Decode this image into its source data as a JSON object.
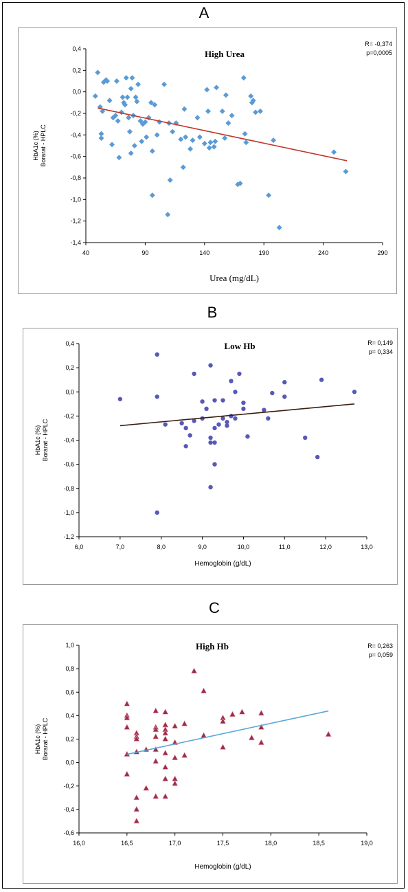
{
  "chart_data": [
    {
      "panel": "A",
      "type": "scatter",
      "title": "High Urea",
      "xlabel": "Urea (mg/dL)",
      "ylabel": [
        "HbA1c (%)",
        "Borarat - HPLC"
      ],
      "annotation": [
        "R= -0,374",
        "p=0,0005"
      ],
      "xlim": [
        40,
        290
      ],
      "ylim": [
        -1.4,
        0.4
      ],
      "xticks": [
        "40",
        "90",
        "140",
        "190",
        "240",
        "290"
      ],
      "yticks": [
        "0,4",
        "0,2",
        "0,0",
        "-0,2",
        "-0,4",
        "-0,6",
        "-0,8",
        "-1,0",
        "-1,2",
        "-1,4"
      ],
      "marker": "diamond",
      "marker_color": "#5b9bd5",
      "line_color": "#c0392b",
      "trend": [
        [
          50,
          -0.15
        ],
        [
          260,
          -0.64
        ]
      ],
      "points": [
        [
          48,
          -0.04
        ],
        [
          50,
          0.18
        ],
        [
          52,
          -0.14
        ],
        [
          53,
          -0.39
        ],
        [
          53,
          -0.43
        ],
        [
          54,
          -0.18
        ],
        [
          55,
          0.09
        ],
        [
          57,
          0.11
        ],
        [
          58,
          0.1
        ],
        [
          60,
          -0.08
        ],
        [
          62,
          -0.49
        ],
        [
          63,
          -0.24
        ],
        [
          65,
          -0.22
        ],
        [
          66,
          0.1
        ],
        [
          67,
          -0.27
        ],
        [
          68,
          -0.61
        ],
        [
          70,
          -0.19
        ],
        [
          71,
          -0.05
        ],
        [
          72,
          -0.1
        ],
        [
          73,
          -0.12
        ],
        [
          74,
          0.13
        ],
        [
          75,
          -0.05
        ],
        [
          76,
          -0.24
        ],
        [
          77,
          -0.37
        ],
        [
          78,
          0.03
        ],
        [
          78,
          -0.57
        ],
        [
          79,
          0.13
        ],
        [
          80,
          -0.22
        ],
        [
          81,
          -0.5
        ],
        [
          82,
          -0.05
        ],
        [
          83,
          -0.09
        ],
        [
          84,
          0.07
        ],
        [
          86,
          -0.27
        ],
        [
          87,
          -0.46
        ],
        [
          88,
          -0.3
        ],
        [
          90,
          -0.28
        ],
        [
          91,
          -0.42
        ],
        [
          93,
          -0.24
        ],
        [
          95,
          -0.1
        ],
        [
          96,
          -0.55
        ],
        [
          96,
          -0.96
        ],
        [
          98,
          -0.12
        ],
        [
          100,
          -0.4
        ],
        [
          102,
          -0.28
        ],
        [
          106,
          0.07
        ],
        [
          109,
          -1.14
        ],
        [
          110,
          -0.29
        ],
        [
          111,
          -0.82
        ],
        [
          113,
          -0.37
        ],
        [
          116,
          -0.29
        ],
        [
          120,
          -0.44
        ],
        [
          122,
          -0.7
        ],
        [
          123,
          -0.16
        ],
        [
          124,
          -0.42
        ],
        [
          128,
          -0.53
        ],
        [
          130,
          -0.45
        ],
        [
          134,
          -0.24
        ],
        [
          136,
          -0.42
        ],
        [
          140,
          -0.48
        ],
        [
          142,
          0.02
        ],
        [
          143,
          -0.18
        ],
        [
          144,
          -0.52
        ],
        [
          145,
          -0.47
        ],
        [
          148,
          -0.51
        ],
        [
          149,
          -0.46
        ],
        [
          150,
          0.04
        ],
        [
          155,
          -0.18
        ],
        [
          157,
          -0.43
        ],
        [
          158,
          -0.03
        ],
        [
          160,
          -0.29
        ],
        [
          163,
          -0.22
        ],
        [
          168,
          -0.86
        ],
        [
          170,
          -0.85
        ],
        [
          173,
          0.13
        ],
        [
          174,
          -0.39
        ],
        [
          175,
          -0.47
        ],
        [
          179,
          -0.04
        ],
        [
          180,
          -0.1
        ],
        [
          181,
          -0.08
        ],
        [
          183,
          -0.19
        ],
        [
          187,
          -0.18
        ],
        [
          194,
          -0.96
        ],
        [
          198,
          -0.45
        ],
        [
          203,
          -1.26
        ],
        [
          249,
          -0.56
        ],
        [
          259,
          -0.74
        ]
      ]
    },
    {
      "panel": "B",
      "type": "scatter",
      "title": "Low Hb",
      "xlabel": "Hemoglobin (g/dL)",
      "ylabel": [
        "HbA1c (%)",
        "Borarat - HPLC"
      ],
      "annotation": [
        "R= 0,149",
        "p= 0,334"
      ],
      "xlim": [
        6.0,
        13.0
      ],
      "ylim": [
        -1.2,
        0.4
      ],
      "xticks": [
        "6,0",
        "7,0",
        "8,0",
        "9,0",
        "10,0",
        "11,0",
        "12,0",
        "13,0"
      ],
      "yticks": [
        "0,4",
        "0,2",
        "0,0",
        "-0,2",
        "-0,4",
        "-0,6",
        "-0,8",
        "-1,0",
        "-1,2"
      ],
      "marker": "circle",
      "marker_color": "#5858b8",
      "line_color": "#3a1e10",
      "trend": [
        [
          7.0,
          -0.28
        ],
        [
          12.7,
          -0.1
        ]
      ],
      "points": [
        [
          7.0,
          -0.06
        ],
        [
          7.9,
          0.31
        ],
        [
          7.9,
          -0.04
        ],
        [
          7.9,
          -1.0
        ],
        [
          8.1,
          -0.27
        ],
        [
          8.5,
          -0.26
        ],
        [
          8.6,
          -0.45
        ],
        [
          8.6,
          -0.3
        ],
        [
          8.7,
          -0.36
        ],
        [
          8.8,
          0.15
        ],
        [
          8.8,
          -0.24
        ],
        [
          9.0,
          -0.08
        ],
        [
          9.0,
          -0.22
        ],
        [
          9.1,
          -0.14
        ],
        [
          9.2,
          0.22
        ],
        [
          9.2,
          -0.38
        ],
        [
          9.2,
          -0.42
        ],
        [
          9.2,
          -0.79
        ],
        [
          9.3,
          -0.07
        ],
        [
          9.3,
          -0.3
        ],
        [
          9.3,
          -0.42
        ],
        [
          9.3,
          -0.6
        ],
        [
          9.4,
          -0.27
        ],
        [
          9.5,
          -0.07
        ],
        [
          9.5,
          -0.22
        ],
        [
          9.6,
          -0.28
        ],
        [
          9.6,
          -0.25
        ],
        [
          9.7,
          0.09
        ],
        [
          9.7,
          -0.2
        ],
        [
          9.8,
          0.0
        ],
        [
          9.8,
          -0.22
        ],
        [
          9.9,
          0.15
        ],
        [
          10.0,
          -0.09
        ],
        [
          10.0,
          -0.14
        ],
        [
          10.1,
          -0.37
        ],
        [
          10.5,
          -0.15
        ],
        [
          10.6,
          -0.22
        ],
        [
          10.7,
          -0.01
        ],
        [
          11.0,
          0.08
        ],
        [
          11.0,
          -0.04
        ],
        [
          11.5,
          -0.38
        ],
        [
          11.8,
          -0.54
        ],
        [
          11.9,
          0.1
        ],
        [
          12.7,
          0.0
        ]
      ]
    },
    {
      "panel": "C",
      "type": "scatter",
      "title": "High Hb",
      "xlabel": "Hemoglobin (g/dL)",
      "ylabel": [
        "HbA1c (%)",
        "Borarat - HPLC"
      ],
      "annotation": [
        "R= 0,263",
        "p= 0,059"
      ],
      "xlim": [
        16.0,
        19.0
      ],
      "ylim": [
        -0.6,
        1.0
      ],
      "xticks": [
        "16,0",
        "16,5",
        "17,0",
        "17,5",
        "18,0",
        "18,5",
        "19,0"
      ],
      "yticks": [
        "1,0",
        "0,8",
        "0,6",
        "0,4",
        "0,2",
        "0,0",
        "-0,2",
        "-0,4",
        "-0,6"
      ],
      "marker": "triangle",
      "marker_color": "#9b2d48",
      "line_color": "#5aa8d8",
      "trend": [
        [
          16.5,
          0.07
        ],
        [
          18.6,
          0.44
        ]
      ],
      "points": [
        [
          16.5,
          0.5
        ],
        [
          16.5,
          0.4
        ],
        [
          16.5,
          0.38
        ],
        [
          16.5,
          0.3
        ],
        [
          16.5,
          0.07
        ],
        [
          16.5,
          -0.1
        ],
        [
          16.6,
          0.25
        ],
        [
          16.6,
          0.22
        ],
        [
          16.6,
          0.2
        ],
        [
          16.6,
          0.09
        ],
        [
          16.6,
          -0.3
        ],
        [
          16.6,
          -0.4
        ],
        [
          16.6,
          -0.5
        ],
        [
          16.7,
          0.11
        ],
        [
          16.7,
          -0.22
        ],
        [
          16.8,
          0.44
        ],
        [
          16.8,
          0.3
        ],
        [
          16.8,
          0.28
        ],
        [
          16.8,
          0.22
        ],
        [
          16.8,
          0.11
        ],
        [
          16.8,
          0.01
        ],
        [
          16.8,
          -0.29
        ],
        [
          16.9,
          0.43
        ],
        [
          16.9,
          0.32
        ],
        [
          16.9,
          0.28
        ],
        [
          16.9,
          0.25
        ],
        [
          16.9,
          0.2
        ],
        [
          16.9,
          0.08
        ],
        [
          16.9,
          -0.04
        ],
        [
          16.9,
          -0.14
        ],
        [
          16.9,
          -0.29
        ],
        [
          17.0,
          0.31
        ],
        [
          17.0,
          0.17
        ],
        [
          17.0,
          0.04
        ],
        [
          17.0,
          -0.14
        ],
        [
          17.0,
          -0.18
        ],
        [
          17.1,
          0.33
        ],
        [
          17.1,
          0.06
        ],
        [
          17.2,
          0.78
        ],
        [
          17.3,
          0.61
        ],
        [
          17.3,
          0.23
        ],
        [
          17.5,
          0.38
        ],
        [
          17.5,
          0.35
        ],
        [
          17.5,
          0.13
        ],
        [
          17.6,
          0.41
        ],
        [
          17.7,
          0.43
        ],
        [
          17.8,
          0.21
        ],
        [
          17.9,
          0.42
        ],
        [
          17.9,
          0.3
        ],
        [
          17.9,
          0.17
        ],
        [
          18.6,
          0.24
        ]
      ]
    }
  ]
}
